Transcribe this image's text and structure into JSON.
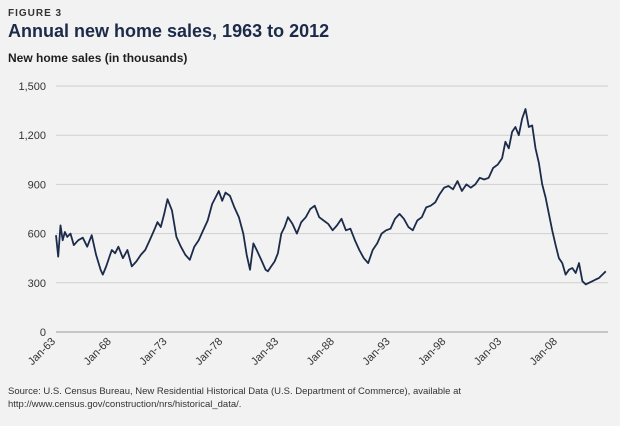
{
  "figure_label": "FIGURE 3",
  "source_note": "Source: U.S. Census Bureau, New Residential Historical Data (U.S. Department of Commerce), available at http://www.census.gov/construction/nrs/historical_data/.",
  "colors": {
    "line": "#1c2b4a",
    "grid": "#cfcfcf",
    "background": "#f2f2f2"
  },
  "chart_data": {
    "type": "line",
    "title": "Annual new home sales, 1963 to 2012",
    "ylabel": "New home sales (in thousands)",
    "xlabel": "",
    "ylim": [
      0,
      1500
    ],
    "xlim": [
      1963,
      2012.5
    ],
    "yticks": [
      0,
      300,
      600,
      900,
      1200,
      1500
    ],
    "ytick_labels": [
      "0",
      "300",
      "600",
      "900",
      "1,200",
      "1,500"
    ],
    "xticks": [
      1963,
      1968,
      1973,
      1978,
      1983,
      1988,
      1993,
      1998,
      2003,
      2008
    ],
    "xtick_labels": [
      "Jan-63",
      "Jan-68",
      "Jan-73",
      "Jan-78",
      "Jan-83",
      "Jan-88",
      "Jan-93",
      "Jan-98",
      "Jan-03",
      "Jan-08"
    ],
    "grid": true,
    "series": [
      {
        "name": "New home sales (in thousands)",
        "x": [
          1963.0,
          1963.2,
          1963.4,
          1963.6,
          1963.8,
          1964.0,
          1964.3,
          1964.6,
          1965.0,
          1965.4,
          1965.8,
          1966.2,
          1966.6,
          1967.0,
          1967.2,
          1967.5,
          1967.8,
          1968.0,
          1968.3,
          1968.6,
          1969.0,
          1969.4,
          1969.8,
          1970.2,
          1970.6,
          1971.0,
          1971.4,
          1971.8,
          1972.1,
          1972.4,
          1972.7,
          1973.0,
          1973.4,
          1973.8,
          1974.2,
          1974.6,
          1975.0,
          1975.4,
          1975.8,
          1976.2,
          1976.6,
          1977.0,
          1977.3,
          1977.6,
          1977.9,
          1978.2,
          1978.6,
          1979.0,
          1979.4,
          1979.8,
          1980.1,
          1980.4,
          1980.7,
          1981.0,
          1981.4,
          1981.8,
          1982.0,
          1982.3,
          1982.6,
          1982.9,
          1983.2,
          1983.5,
          1983.8,
          1984.2,
          1984.6,
          1985.0,
          1985.4,
          1985.8,
          1986.2,
          1986.6,
          1987.0,
          1987.4,
          1987.8,
          1988.2,
          1988.6,
          1989.0,
          1989.4,
          1989.8,
          1990.2,
          1990.6,
          1991.0,
          1991.4,
          1991.8,
          1992.2,
          1992.6,
          1993.0,
          1993.4,
          1993.8,
          1994.2,
          1994.6,
          1995.0,
          1995.4,
          1995.8,
          1996.2,
          1996.6,
          1997.0,
          1997.4,
          1997.8,
          1998.2,
          1998.6,
          1999.0,
          1999.4,
          1999.8,
          2000.2,
          2000.6,
          2001.0,
          2001.4,
          2001.8,
          2002.2,
          2002.6,
          2003.0,
          2003.3,
          2003.6,
          2003.9,
          2004.2,
          2004.5,
          2004.8,
          2005.1,
          2005.4,
          2005.7,
          2006.0,
          2006.3,
          2006.6,
          2006.9,
          2007.2,
          2007.5,
          2007.8,
          2008.1,
          2008.4,
          2008.7,
          2009.0,
          2009.3,
          2009.6,
          2009.9,
          2010.2,
          2010.5,
          2010.8,
          2011.1,
          2011.4,
          2011.7,
          2012.0,
          2012.3
        ],
        "values": [
          590,
          460,
          650,
          560,
          610,
          580,
          600,
          530,
          560,
          575,
          520,
          590,
          470,
          380,
          350,
          400,
          460,
          500,
          480,
          520,
          450,
          500,
          400,
          430,
          470,
          500,
          560,
          620,
          670,
          640,
          720,
          810,
          740,
          580,
          520,
          470,
          440,
          520,
          560,
          620,
          680,
          780,
          820,
          860,
          800,
          850,
          830,
          760,
          700,
          600,
          470,
          380,
          540,
          500,
          440,
          380,
          370,
          400,
          430,
          480,
          600,
          640,
          700,
          660,
          600,
          670,
          700,
          750,
          770,
          700,
          680,
          660,
          620,
          650,
          690,
          620,
          630,
          560,
          500,
          450,
          420,
          500,
          540,
          600,
          620,
          630,
          690,
          720,
          690,
          640,
          620,
          680,
          700,
          760,
          770,
          790,
          840,
          880,
          890,
          870,
          920,
          860,
          900,
          880,
          900,
          940,
          930,
          940,
          1000,
          1020,
          1060,
          1160,
          1120,
          1220,
          1250,
          1200,
          1300,
          1360,
          1250,
          1260,
          1120,
          1030,
          900,
          820,
          720,
          620,
          530,
          450,
          420,
          350,
          380,
          390,
          360,
          420,
          310,
          290,
          300,
          310,
          320,
          330,
          350,
          370
        ]
      }
    ]
  }
}
